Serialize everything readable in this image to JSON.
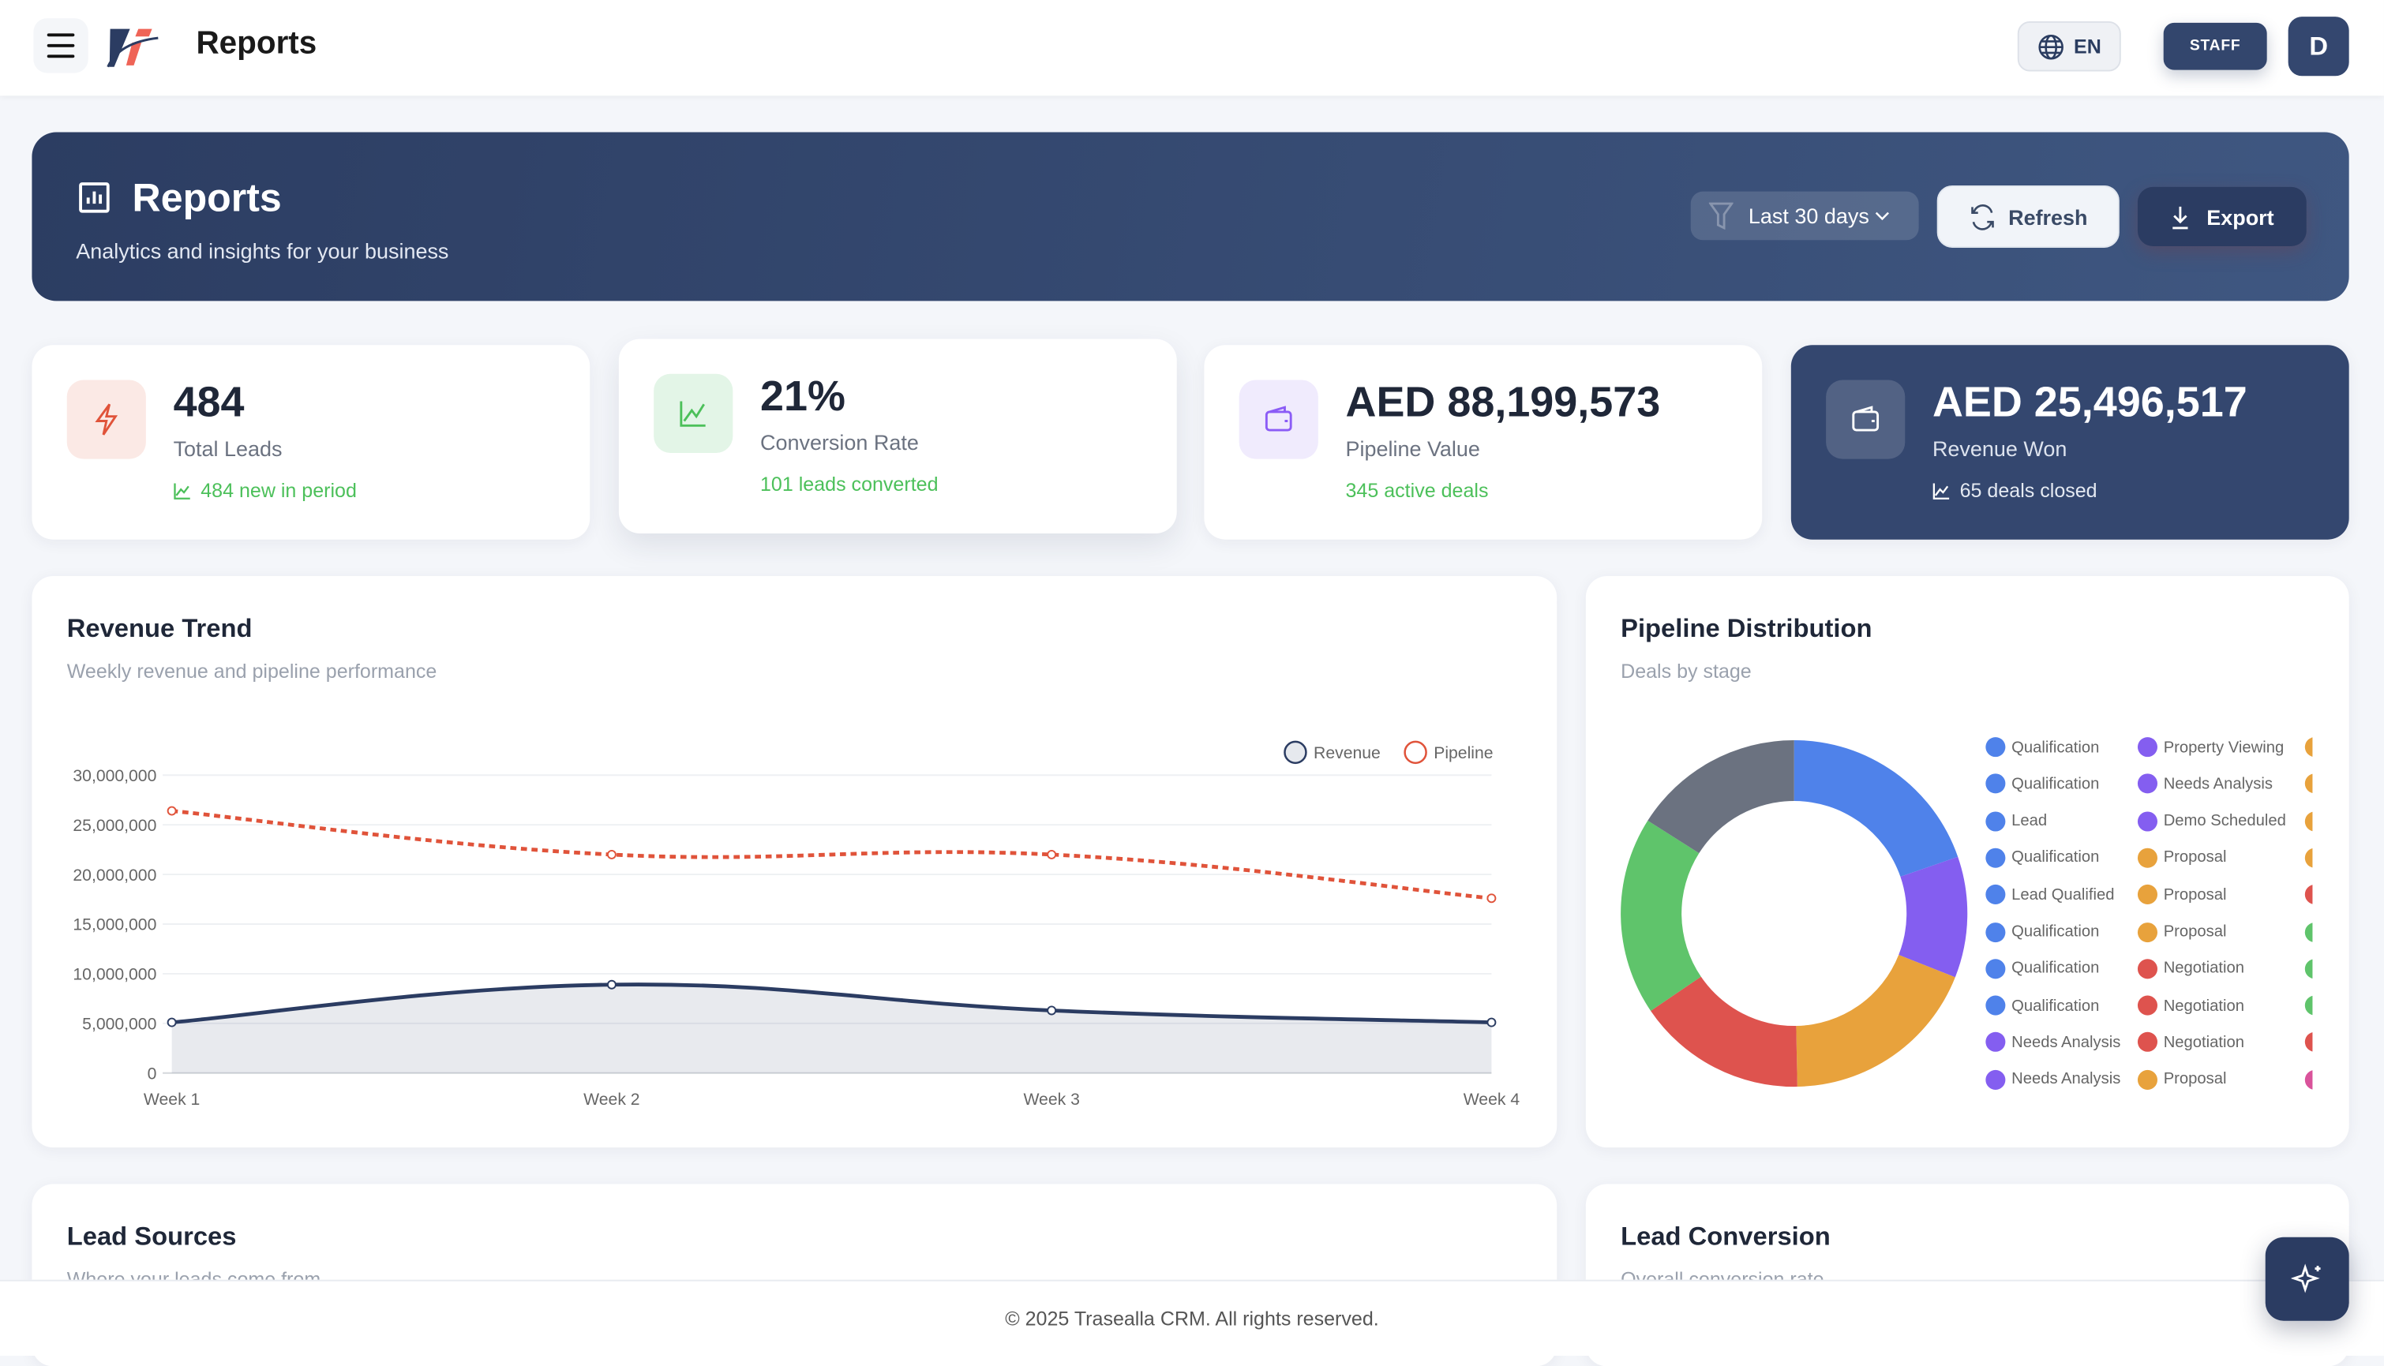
{
  "header": {
    "title": "Reports",
    "language": "EN",
    "role_badge": "STAFF",
    "avatar_initial": "D"
  },
  "banner": {
    "title": "Reports",
    "subtitle": "Analytics and insights for your business",
    "date_filter": "Last 30 days",
    "refresh_label": "Refresh",
    "export_label": "Export"
  },
  "kpis": [
    {
      "value": "484",
      "label": "Total Leads",
      "sub": "484 new in period",
      "color": "#e0533a"
    },
    {
      "value": "21%",
      "label": "Conversion Rate",
      "sub": "101 leads converted",
      "color": "#4cc05a"
    },
    {
      "value": "AED 88,199,573",
      "label": "Pipeline Value",
      "sub": "345 active deals",
      "color": "#8b5cf6"
    },
    {
      "value": "AED 25,496,517",
      "label": "Revenue Won",
      "sub": "65 deals closed",
      "color": "#ffffff"
    }
  ],
  "revenue_trend": {
    "title": "Revenue Trend",
    "subtitle": "Weekly revenue and pipeline performance"
  },
  "pipeline_distribution": {
    "title": "Pipeline Distribution",
    "subtitle": "Deals by stage"
  },
  "lead_sources": {
    "title": "Lead Sources",
    "subtitle": "Where your leads come from"
  },
  "lead_conversion": {
    "title": "Lead Conversion",
    "subtitle": "Overall conversion rate"
  },
  "footer": {
    "text": "© 2025 Trasealla CRM. All rights reserved."
  },
  "chart_data": [
    {
      "type": "line",
      "categories": [
        "Week 1",
        "Week 2",
        "Week 3",
        "Week 4"
      ],
      "series": [
        {
          "name": "Revenue",
          "values": [
            5100000,
            8900000,
            6300000,
            5100000
          ],
          "color": "#2b3c62",
          "fill": true
        },
        {
          "name": "Pipeline",
          "values": [
            26400000,
            22000000,
            22000000,
            17600000
          ],
          "color": "#e0533a",
          "dashed": true
        }
      ],
      "ylim": [
        0,
        30000000
      ],
      "yticks": [
        "0",
        "5,000,000",
        "10,000,000",
        "15,000,000",
        "20,000,000",
        "25,000,000",
        "30,000,000"
      ],
      "grid": true,
      "legend": "top-right"
    },
    {
      "type": "pie",
      "donut": true,
      "slices": [
        {
          "color": "#4f82ea",
          "share": 0.197
        },
        {
          "color": "#845ef0",
          "share": 0.113
        },
        {
          "color": "#e8a23c",
          "share": 0.187
        },
        {
          "color": "#de534e",
          "share": 0.158
        },
        {
          "color": "#5fc46b",
          "share": 0.185
        },
        {
          "color": "#6b7280",
          "share": 0.16
        }
      ],
      "legend": [
        [
          {
            "label": "Qualification",
            "color": "#4f82ea"
          },
          {
            "label": "Qualification",
            "color": "#4f82ea"
          },
          {
            "label": "Lead",
            "color": "#4f82ea"
          },
          {
            "label": "Qualification",
            "color": "#4f82ea"
          },
          {
            "label": "Lead Qualified",
            "color": "#4f82ea"
          },
          {
            "label": "Qualification",
            "color": "#4f82ea"
          },
          {
            "label": "Qualification",
            "color": "#4f82ea"
          },
          {
            "label": "Qualification",
            "color": "#4f82ea"
          },
          {
            "label": "Needs Analysis",
            "color": "#845ef0"
          },
          {
            "label": "Needs Analysis",
            "color": "#845ef0"
          }
        ],
        [
          {
            "label": "Property Viewing",
            "color": "#845ef0"
          },
          {
            "label": "Needs Analysis",
            "color": "#845ef0"
          },
          {
            "label": "Demo Scheduled",
            "color": "#845ef0"
          },
          {
            "label": "Proposal",
            "color": "#e8a23c"
          },
          {
            "label": "Proposal",
            "color": "#e8a23c"
          },
          {
            "label": "Proposal",
            "color": "#e8a23c"
          },
          {
            "label": "Negotiation",
            "color": "#de534e"
          },
          {
            "label": "Negotiation",
            "color": "#de534e"
          },
          {
            "label": "Negotiation",
            "color": "#de534e"
          },
          {
            "label": "Proposal",
            "color": "#e8a23c"
          }
        ],
        [
          {
            "color": "#e8a23c"
          },
          {
            "color": "#e8a23c"
          },
          {
            "color": "#e8a23c"
          },
          {
            "color": "#e8a23c"
          },
          {
            "color": "#de534e"
          },
          {
            "color": "#5fc46b"
          },
          {
            "color": "#5fc46b"
          },
          {
            "color": "#5fc46b"
          },
          {
            "color": "#de534e"
          },
          {
            "color": "#d9539b"
          }
        ]
      ],
      "legend_position": "right"
    }
  ]
}
